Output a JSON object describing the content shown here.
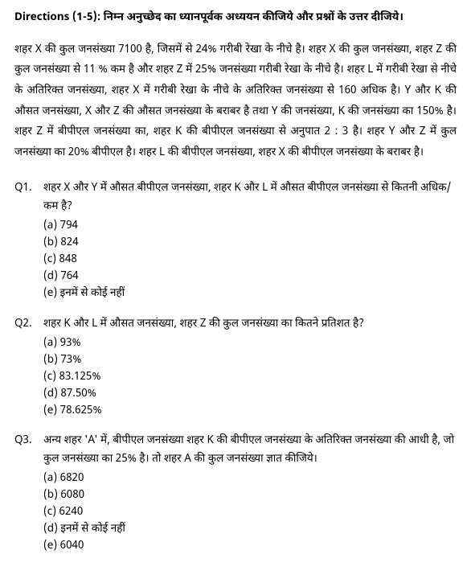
{
  "directions": "Directions (1-5): निम्न अनुच्छेद का ध्यानपूर्वक अध्ययन कीजिये और प्रश्नों के उत्तर दीजिये।",
  "passage": "शहर X की कुल जनसंख्या 7100 है, जिसमें से 24% गरीबी रेखा के नीचे है। शहर X की कुल जनसंख्या, शहर Z की कुल जनसंख्या से 11 % कम है और शहर Z में 25% जनसंख्या गरीबी रेखा के नीचे है। शहर L में गरीबी रेखा से नीचे के अतिरिक्त जनसंख्या, शहर X में गरीबी रेखा के नीचे के अतिरिक्त जनसंख्या से 160 अधिक है। Y और K की औसत जनसंख्या, X और Z की औसत जनसंख्या के बराबर है तथा Y की जनसंख्या, K की जनसंख्या का 150% है। शहर Z में बीपीएल जनसंख्या का, शहर K की बीपीएल जनसंख्या से अनुपात 2 : 3 है। शहर Y और Z में कुल जनसंख्या का 20% बीपीएल है। शहर L की बीपीएल जनसंख्या, शहर X की बीपीएल जनसंख्या के बराबर है।",
  "questions": [
    {
      "num": "Q1.",
      "text": "शहर X और Y में औसत बीपीएल जनसंख्या, शहर K और L में औसत बीपीएल जनसंख्या से कितनी अधिक/कम है?",
      "options": [
        "(a) 794",
        "(b) 824",
        "(c) 848",
        "(d) 764",
        "(e) इनमें से कोई नहीं"
      ]
    },
    {
      "num": "Q2.",
      "text": "शहर K और L में औसत जनसंख्या, शहर Z की कुल जनसंख्या का कितने प्रतिशत है?",
      "options": [
        "(a) 93%",
        "(b) 73%",
        "(c) 83.125%",
        "(d) 87.50%",
        "(e) 78.625%"
      ]
    },
    {
      "num": "Q3.",
      "text": "अन्य शहर 'A' में, बीपीएल जनसंख्या शहर K की बीपीएल जनसंख्या के अतिरिक्त जनसंख्या की आधी है, जो कुल जनसंख्या का 25% है। तो शहर A की कुल जनसंख्या ज्ञात कीजिये।",
      "options": [
        "(a) 6820",
        "(b) 6080",
        "(c) 6240",
        "(d) इनमें से कोई नहीं",
        "(e) 6040"
      ]
    }
  ]
}
